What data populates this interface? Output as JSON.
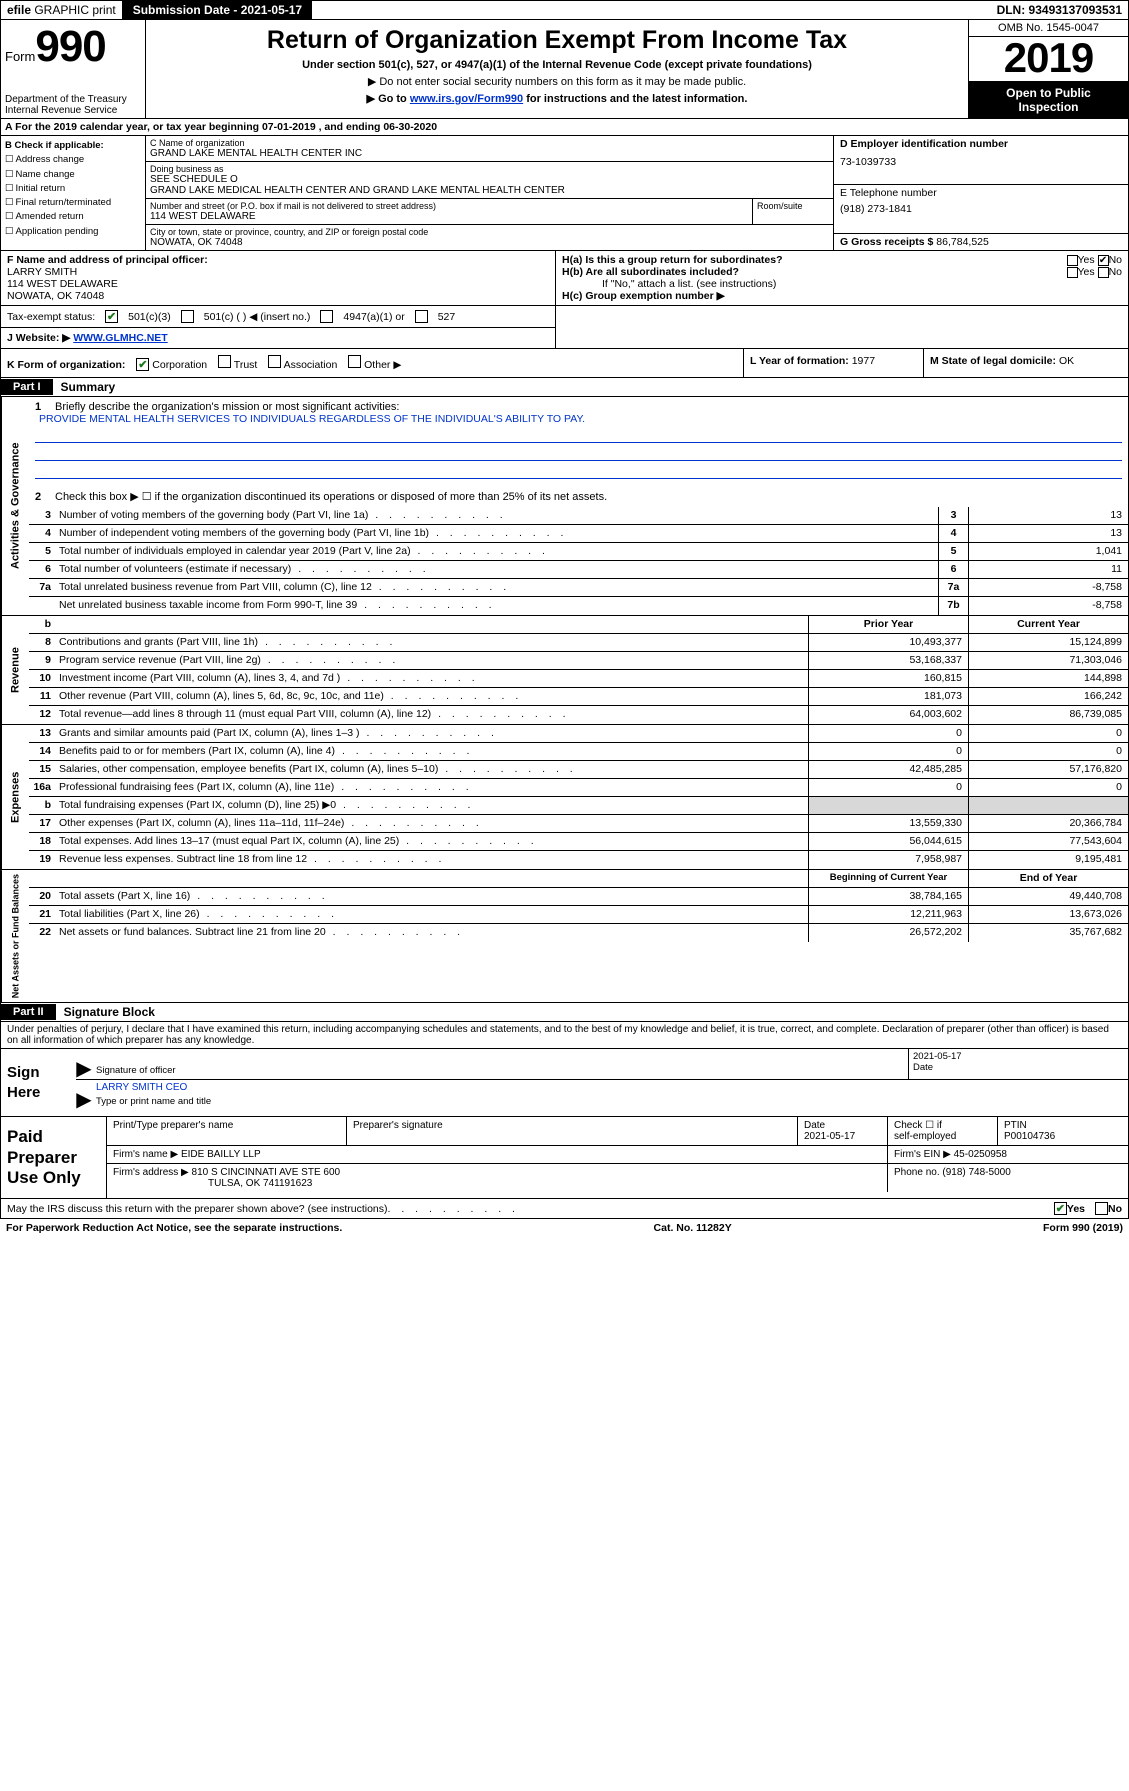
{
  "topbar": {
    "efile_prefix": "efile",
    "efile_rest": " GRAPHIC print",
    "submission_label": "Submission Date - 2021-05-17",
    "dln": "DLN: 93493137093531"
  },
  "header": {
    "form_word": "Form",
    "form_num": "990",
    "dept1": "Department of the Treasury",
    "dept2": "Internal Revenue Service",
    "title": "Return of Organization Exempt From Income Tax",
    "sub1": "Under section 501(c), 527, or 4947(a)(1) of the Internal Revenue Code (except private foundations)",
    "sub2_pre": "▶ Do not enter social security numbers on this form as it may be made public.",
    "sub3_pre": "▶ Go to ",
    "sub3_link": "www.irs.gov/Form990",
    "sub3_post": " for instructions and the latest information.",
    "omb": "OMB No. 1545-0047",
    "year": "2019",
    "open1": "Open to Public",
    "open2": "Inspection"
  },
  "rowA": "A For the 2019 calendar year, or tax year beginning 07-01-2019    , and ending 06-30-2020",
  "colB": {
    "hdr": "B Check if applicable:",
    "items": [
      "Address change",
      "Name change",
      "Initial return",
      "Final return/terminated",
      "Amended return",
      "Application pending"
    ]
  },
  "name": {
    "c_lbl": "C Name of organization",
    "c_val": "GRAND LAKE MENTAL HEALTH CENTER INC",
    "dba_lbl": "Doing business as",
    "dba_val": "SEE SCHEDULE O",
    "dba_val2": "GRAND LAKE MEDICAL HEALTH CENTER AND GRAND LAKE MENTAL HEALTH CENTER",
    "addr_lbl": "Number and street (or P.O. box if mail is not delivered to street address)",
    "addr_val": "114 WEST DELAWARE",
    "room_lbl": "Room/suite",
    "city_lbl": "City or town, state or province, country, and ZIP or foreign postal code",
    "city_val": "NOWATA, OK  74048"
  },
  "colDE": {
    "d_lbl": "D Employer identification number",
    "d_val": "73-1039733",
    "e_lbl": "E Telephone number",
    "e_val": "(918) 273-1841",
    "g_lbl": "G Gross receipts $ ",
    "g_val": "86,784,525"
  },
  "rowF": {
    "lbl": "F  Name and address of principal officer:",
    "name": "LARRY SMITH",
    "addr1": "114 WEST DELAWARE",
    "addr2": "NOWATA, OK  74048"
  },
  "rowH": {
    "ha": "H(a)  Is this a group return for subordinates?",
    "hb": "H(b)  Are all subordinates included?",
    "hb2": "If \"No,\" attach a list. (see instructions)",
    "hc": "H(c)  Group exemption number ▶",
    "yes": "Yes",
    "no": "No"
  },
  "taxrow": {
    "lbl": "Tax-exempt status:",
    "o1": "501(c)(3)",
    "o2": "501(c) (   ) ◀ (insert no.)",
    "o3": "4947(a)(1) or",
    "o4": "527"
  },
  "rowJ": {
    "lbl": "J   Website: ▶  ",
    "val": "WWW.GLMHC.NET"
  },
  "rowK": {
    "lbl": "K Form of organization:",
    "opts": [
      "Corporation",
      "Trust",
      "Association",
      "Other ▶"
    ]
  },
  "rowL": {
    "lbl": "L Year of formation: ",
    "val": "1977"
  },
  "rowM": {
    "lbl": "M State of legal domicile: ",
    "val": "OK"
  },
  "parts": {
    "p1": "Part I",
    "p1t": "Summary",
    "p2": "Part II",
    "p2t": "Signature Block"
  },
  "vtabs": {
    "v1": "Activities & Governance",
    "v2": "Revenue",
    "v3": "Expenses",
    "v4": "Net Assets or Fund Balances"
  },
  "summary": {
    "l1": "Briefly describe the organization's mission or most significant activities:",
    "mission": "PROVIDE MENTAL HEALTH SERVICES TO INDIVIDUALS REGARDLESS OF THE INDIVIDUAL'S ABILITY TO PAY.",
    "l2": "Check this box ▶ ☐  if the organization discontinued its operations or disposed of more than 25% of its net assets.",
    "rows_gov": [
      {
        "n": "3",
        "t": "Number of voting members of the governing body (Part VI, line 1a)",
        "b": "3",
        "v": "13"
      },
      {
        "n": "4",
        "t": "Number of independent voting members of the governing body (Part VI, line 1b)",
        "b": "4",
        "v": "13"
      },
      {
        "n": "5",
        "t": "Total number of individuals employed in calendar year 2019 (Part V, line 2a)",
        "b": "5",
        "v": "1,041"
      },
      {
        "n": "6",
        "t": "Total number of volunteers (estimate if necessary)",
        "b": "6",
        "v": "11"
      },
      {
        "n": "7a",
        "t": "Total unrelated business revenue from Part VIII, column (C), line 12",
        "b": "7a",
        "v": "-8,758"
      },
      {
        "n": "",
        "t": "Net unrelated business taxable income from Form 990-T, line 39",
        "b": "7b",
        "v": "-8,758"
      }
    ],
    "hdr_prior": "Prior Year",
    "hdr_curr": "Current Year",
    "rows_rev": [
      {
        "n": "8",
        "t": "Contributions and grants (Part VIII, line 1h)",
        "p": "10,493,377",
        "c": "15,124,899"
      },
      {
        "n": "9",
        "t": "Program service revenue (Part VIII, line 2g)",
        "p": "53,168,337",
        "c": "71,303,046"
      },
      {
        "n": "10",
        "t": "Investment income (Part VIII, column (A), lines 3, 4, and 7d )",
        "p": "160,815",
        "c": "144,898"
      },
      {
        "n": "11",
        "t": "Other revenue (Part VIII, column (A), lines 5, 6d, 8c, 9c, 10c, and 11e)",
        "p": "181,073",
        "c": "166,242"
      },
      {
        "n": "12",
        "t": "Total revenue—add lines 8 through 11 (must equal Part VIII, column (A), line 12)",
        "p": "64,003,602",
        "c": "86,739,085"
      }
    ],
    "rows_exp": [
      {
        "n": "13",
        "t": "Grants and similar amounts paid (Part IX, column (A), lines 1–3 )",
        "p": "0",
        "c": "0"
      },
      {
        "n": "14",
        "t": "Benefits paid to or for members (Part IX, column (A), line 4)",
        "p": "0",
        "c": "0"
      },
      {
        "n": "15",
        "t": "Salaries, other compensation, employee benefits (Part IX, column (A), lines 5–10)",
        "p": "42,485,285",
        "c": "57,176,820"
      },
      {
        "n": "16a",
        "t": "Professional fundraising fees (Part IX, column (A), line 11e)",
        "p": "0",
        "c": "0"
      },
      {
        "n": "b",
        "t": "Total fundraising expenses (Part IX, column (D), line 25) ▶0",
        "p": "",
        "c": "",
        "shade": true
      },
      {
        "n": "17",
        "t": "Other expenses (Part IX, column (A), lines 11a–11d, 11f–24e)",
        "p": "13,559,330",
        "c": "20,366,784"
      },
      {
        "n": "18",
        "t": "Total expenses. Add lines 13–17 (must equal Part IX, column (A), line 25)",
        "p": "56,044,615",
        "c": "77,543,604"
      },
      {
        "n": "19",
        "t": "Revenue less expenses. Subtract line 18 from line 12",
        "p": "7,958,987",
        "c": "9,195,481"
      }
    ],
    "hdr_beg": "Beginning of Current Year",
    "hdr_end": "End of Year",
    "rows_net": [
      {
        "n": "20",
        "t": "Total assets (Part X, line 16)",
        "p": "38,784,165",
        "c": "49,440,708"
      },
      {
        "n": "21",
        "t": "Total liabilities (Part X, line 26)",
        "p": "12,211,963",
        "c": "13,673,026"
      },
      {
        "n": "22",
        "t": "Net assets or fund balances. Subtract line 21 from line 20",
        "p": "26,572,202",
        "c": "35,767,682"
      }
    ]
  },
  "penalties": "Under penalties of perjury, I declare that I have examined this return, including accompanying schedules and statements, and to the best of my knowledge and belief, it is true, correct, and complete. Declaration of preparer (other than officer) is based on all information of which preparer has any knowledge.",
  "sign": {
    "lbl": "Sign Here",
    "sig_of": "Signature of officer",
    "date_val": "2021-05-17",
    "date_lbl": "Date",
    "name": "LARRY SMITH  CEO",
    "name_lbl": "Type or print name and title"
  },
  "paid": {
    "lbl": "Paid Preparer Use Only",
    "h1": "Print/Type preparer's name",
    "h2": "Preparer's signature",
    "h3": "Date",
    "h3v": "2021-05-17",
    "h4a": "Check ☐ if",
    "h4b": "self-employed",
    "h5": "PTIN",
    "h5v": "P00104736",
    "firm_lbl": "Firm's name     ▶ ",
    "firm_val": "EIDE BAILLY LLP",
    "ein_lbl": "Firm's EIN ▶ ",
    "ein_val": "45-0250958",
    "addr_lbl": "Firm's address ▶ ",
    "addr_val": "810 S CINCINNATI AVE STE 600",
    "addr_val2": "TULSA, OK  741191623",
    "phone_lbl": "Phone no. ",
    "phone_val": "(918) 748-5000"
  },
  "footer": {
    "discuss": "May the IRS discuss this return with the preparer shown above? (see instructions)",
    "yes": "Yes",
    "no": "No",
    "pra": "For Paperwork Reduction Act Notice, see the separate instructions.",
    "cat": "Cat. No. 11282Y",
    "form": "Form 990 (2019)"
  }
}
